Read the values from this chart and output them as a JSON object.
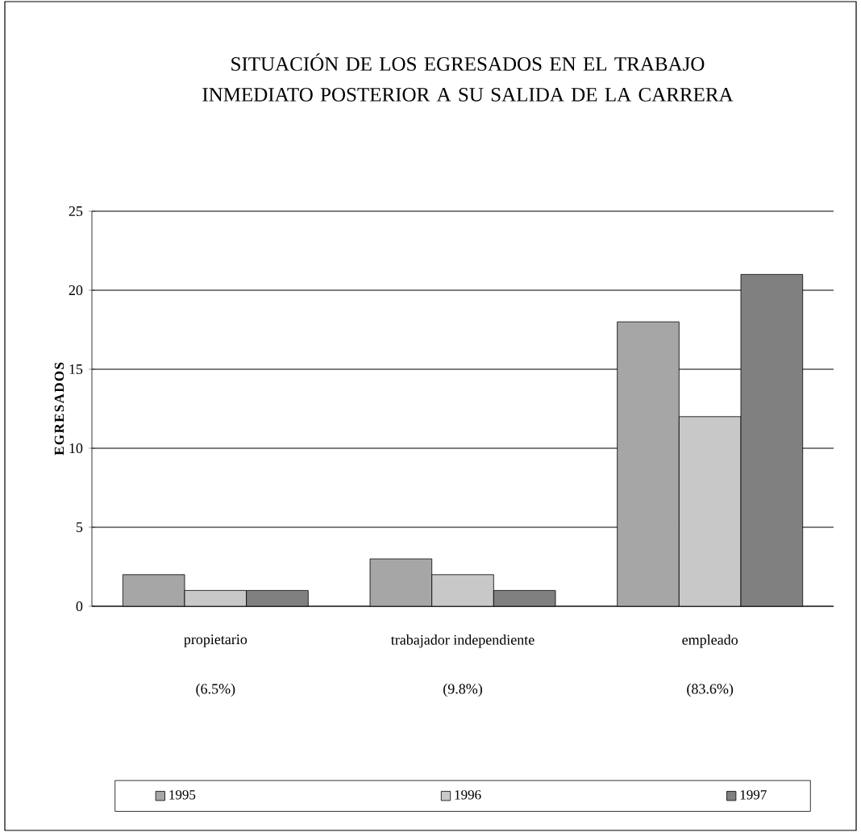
{
  "chart_data": {
    "type": "bar",
    "title": "SITUACIÓN DE LOS EGRESADOS EN EL TRABAJO INMEDIATO POSTERIOR A SU SALIDA DE LA CARRERA",
    "ylabel": "EGRESADOS",
    "categories": [
      "propietario",
      "trabajador independiente",
      "empleado"
    ],
    "annotations": [
      "(6.5%)",
      "(9.8%)",
      "(83.6%)"
    ],
    "series": [
      {
        "name": "1995",
        "color": "#a6a6a6",
        "values": [
          2,
          3,
          18
        ]
      },
      {
        "name": "1996",
        "color": "#c8c8c8",
        "values": [
          1,
          2,
          12
        ]
      },
      {
        "name": "1997",
        "color": "#808080",
        "values": [
          1,
          1,
          21
        ]
      }
    ],
    "ylim": [
      0,
      25
    ],
    "yticks": [
      0,
      5,
      10,
      15,
      20,
      25
    ],
    "grid": "y",
    "legend": "bottom"
  }
}
